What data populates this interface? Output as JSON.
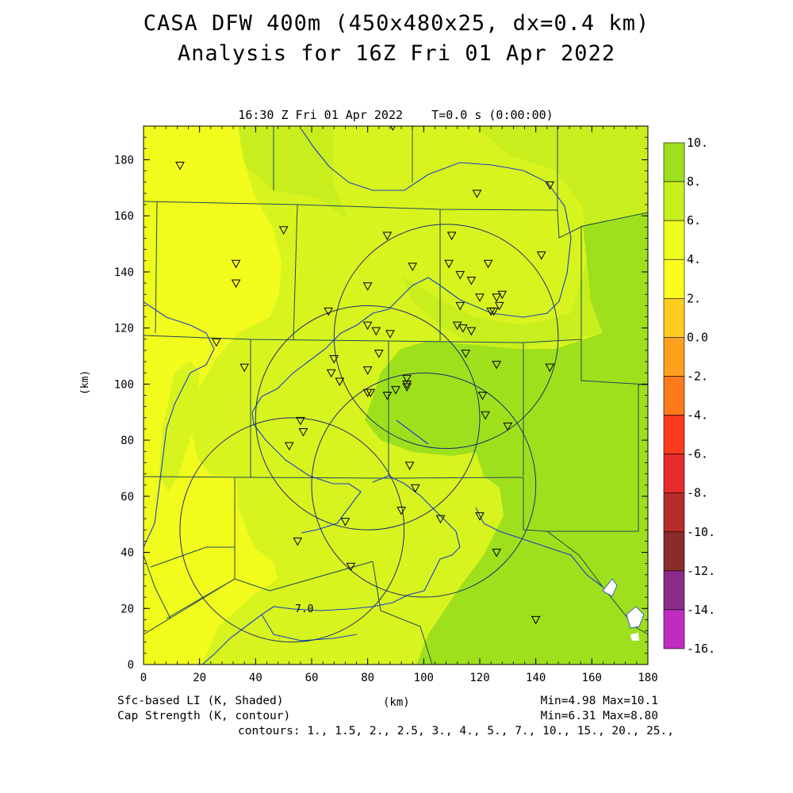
{
  "title_line1": "CASA DFW 400m (450x480x25, dx=0.4 km)",
  "title_line2": "Analysis for 16Z Fri 01 Apr 2022",
  "valid_time": "16:30 Z Fri 01 Apr 2022    T=0.0 s (0:00:00)",
  "axes": {
    "x_title": "(km)",
    "y_title": "(km)",
    "x_ticks": [
      "0",
      "20",
      "40",
      "60",
      "80",
      "100",
      "120",
      "140",
      "160",
      "180"
    ],
    "y_ticks": [
      "0",
      "20",
      "40",
      "60",
      "80",
      "100",
      "120",
      "140",
      "160",
      "180"
    ],
    "x_range": [
      0,
      180
    ],
    "y_range": [
      0,
      192
    ]
  },
  "contour_label": "7.0",
  "colorbar": {
    "labels": [
      "10.",
      "8.",
      "6.",
      "4.",
      "2.",
      "0.0",
      "-2.",
      "-4.",
      "-6.",
      "-8.",
      "-10.",
      "-12.",
      "-14.",
      "-16."
    ],
    "colors": [
      "#9ee01c",
      "#c6f01e",
      "#eefc1c",
      "#fcfc1c",
      "#fccc1e",
      "#fca01e",
      "#fc7a1e",
      "#fc3c1e",
      "#e62c2c",
      "#b82c2c",
      "#8a2c2c",
      "#8a2c8a",
      "#c02cc0",
      "#e23ce2"
    ]
  },
  "radar_rings_km": [
    {
      "cx": 108,
      "cy": 117,
      "r": 40
    },
    {
      "cx": 80,
      "cy": 88,
      "r": 40
    },
    {
      "cx": 100,
      "cy": 64,
      "r": 40
    },
    {
      "cx": 53,
      "cy": 48,
      "r": 40
    }
  ],
  "stations_km": [
    [
      13,
      178
    ],
    [
      33,
      143
    ],
    [
      33,
      136
    ],
    [
      26,
      115
    ],
    [
      36,
      106
    ],
    [
      50,
      155
    ],
    [
      66,
      126
    ],
    [
      67,
      104
    ],
    [
      68,
      109
    ],
    [
      70,
      101
    ],
    [
      80,
      135
    ],
    [
      80,
      121
    ],
    [
      83,
      119
    ],
    [
      84,
      111
    ],
    [
      80,
      105
    ],
    [
      80,
      97
    ],
    [
      81,
      97
    ],
    [
      87,
      96
    ],
    [
      90,
      98
    ],
    [
      88,
      118
    ],
    [
      87,
      153
    ],
    [
      89,
      192
    ],
    [
      96,
      142
    ],
    [
      94,
      102
    ],
    [
      94,
      100
    ],
    [
      94,
      99
    ],
    [
      110,
      153
    ],
    [
      109,
      143
    ],
    [
      113,
      139
    ],
    [
      117,
      137
    ],
    [
      119,
      168
    ],
    [
      123,
      143
    ],
    [
      120,
      131
    ],
    [
      126,
      131
    ],
    [
      128,
      132
    ],
    [
      127,
      128
    ],
    [
      124,
      126
    ],
    [
      125,
      126
    ],
    [
      112,
      121
    ],
    [
      114,
      120
    ],
    [
      117,
      119
    ],
    [
      113,
      128
    ],
    [
      115,
      111
    ],
    [
      126,
      107
    ],
    [
      121,
      96
    ],
    [
      122,
      89
    ],
    [
      130,
      85
    ],
    [
      56,
      87
    ],
    [
      57,
      83
    ],
    [
      52,
      78
    ],
    [
      95,
      71
    ],
    [
      97,
      63
    ],
    [
      92,
      55
    ],
    [
      106,
      52
    ],
    [
      120,
      53
    ],
    [
      126,
      40
    ],
    [
      140,
      16
    ],
    [
      72,
      51
    ],
    [
      55,
      44
    ],
    [
      74,
      35
    ],
    [
      145,
      171
    ],
    [
      142,
      146
    ],
    [
      145,
      106
    ]
  ],
  "footer": {
    "left1": "Sfc-based LI (K, Shaded)",
    "left2": "Cap Strength (K, contour)",
    "right1": "Min=4.98 Max=10.1",
    "right2": "Min=6.31 Max=8.80",
    "right3": "contours: 1., 1.5, 2., 2.5, 3., 4., 5., 7., 10., 15., 20., 25.,"
  }
}
